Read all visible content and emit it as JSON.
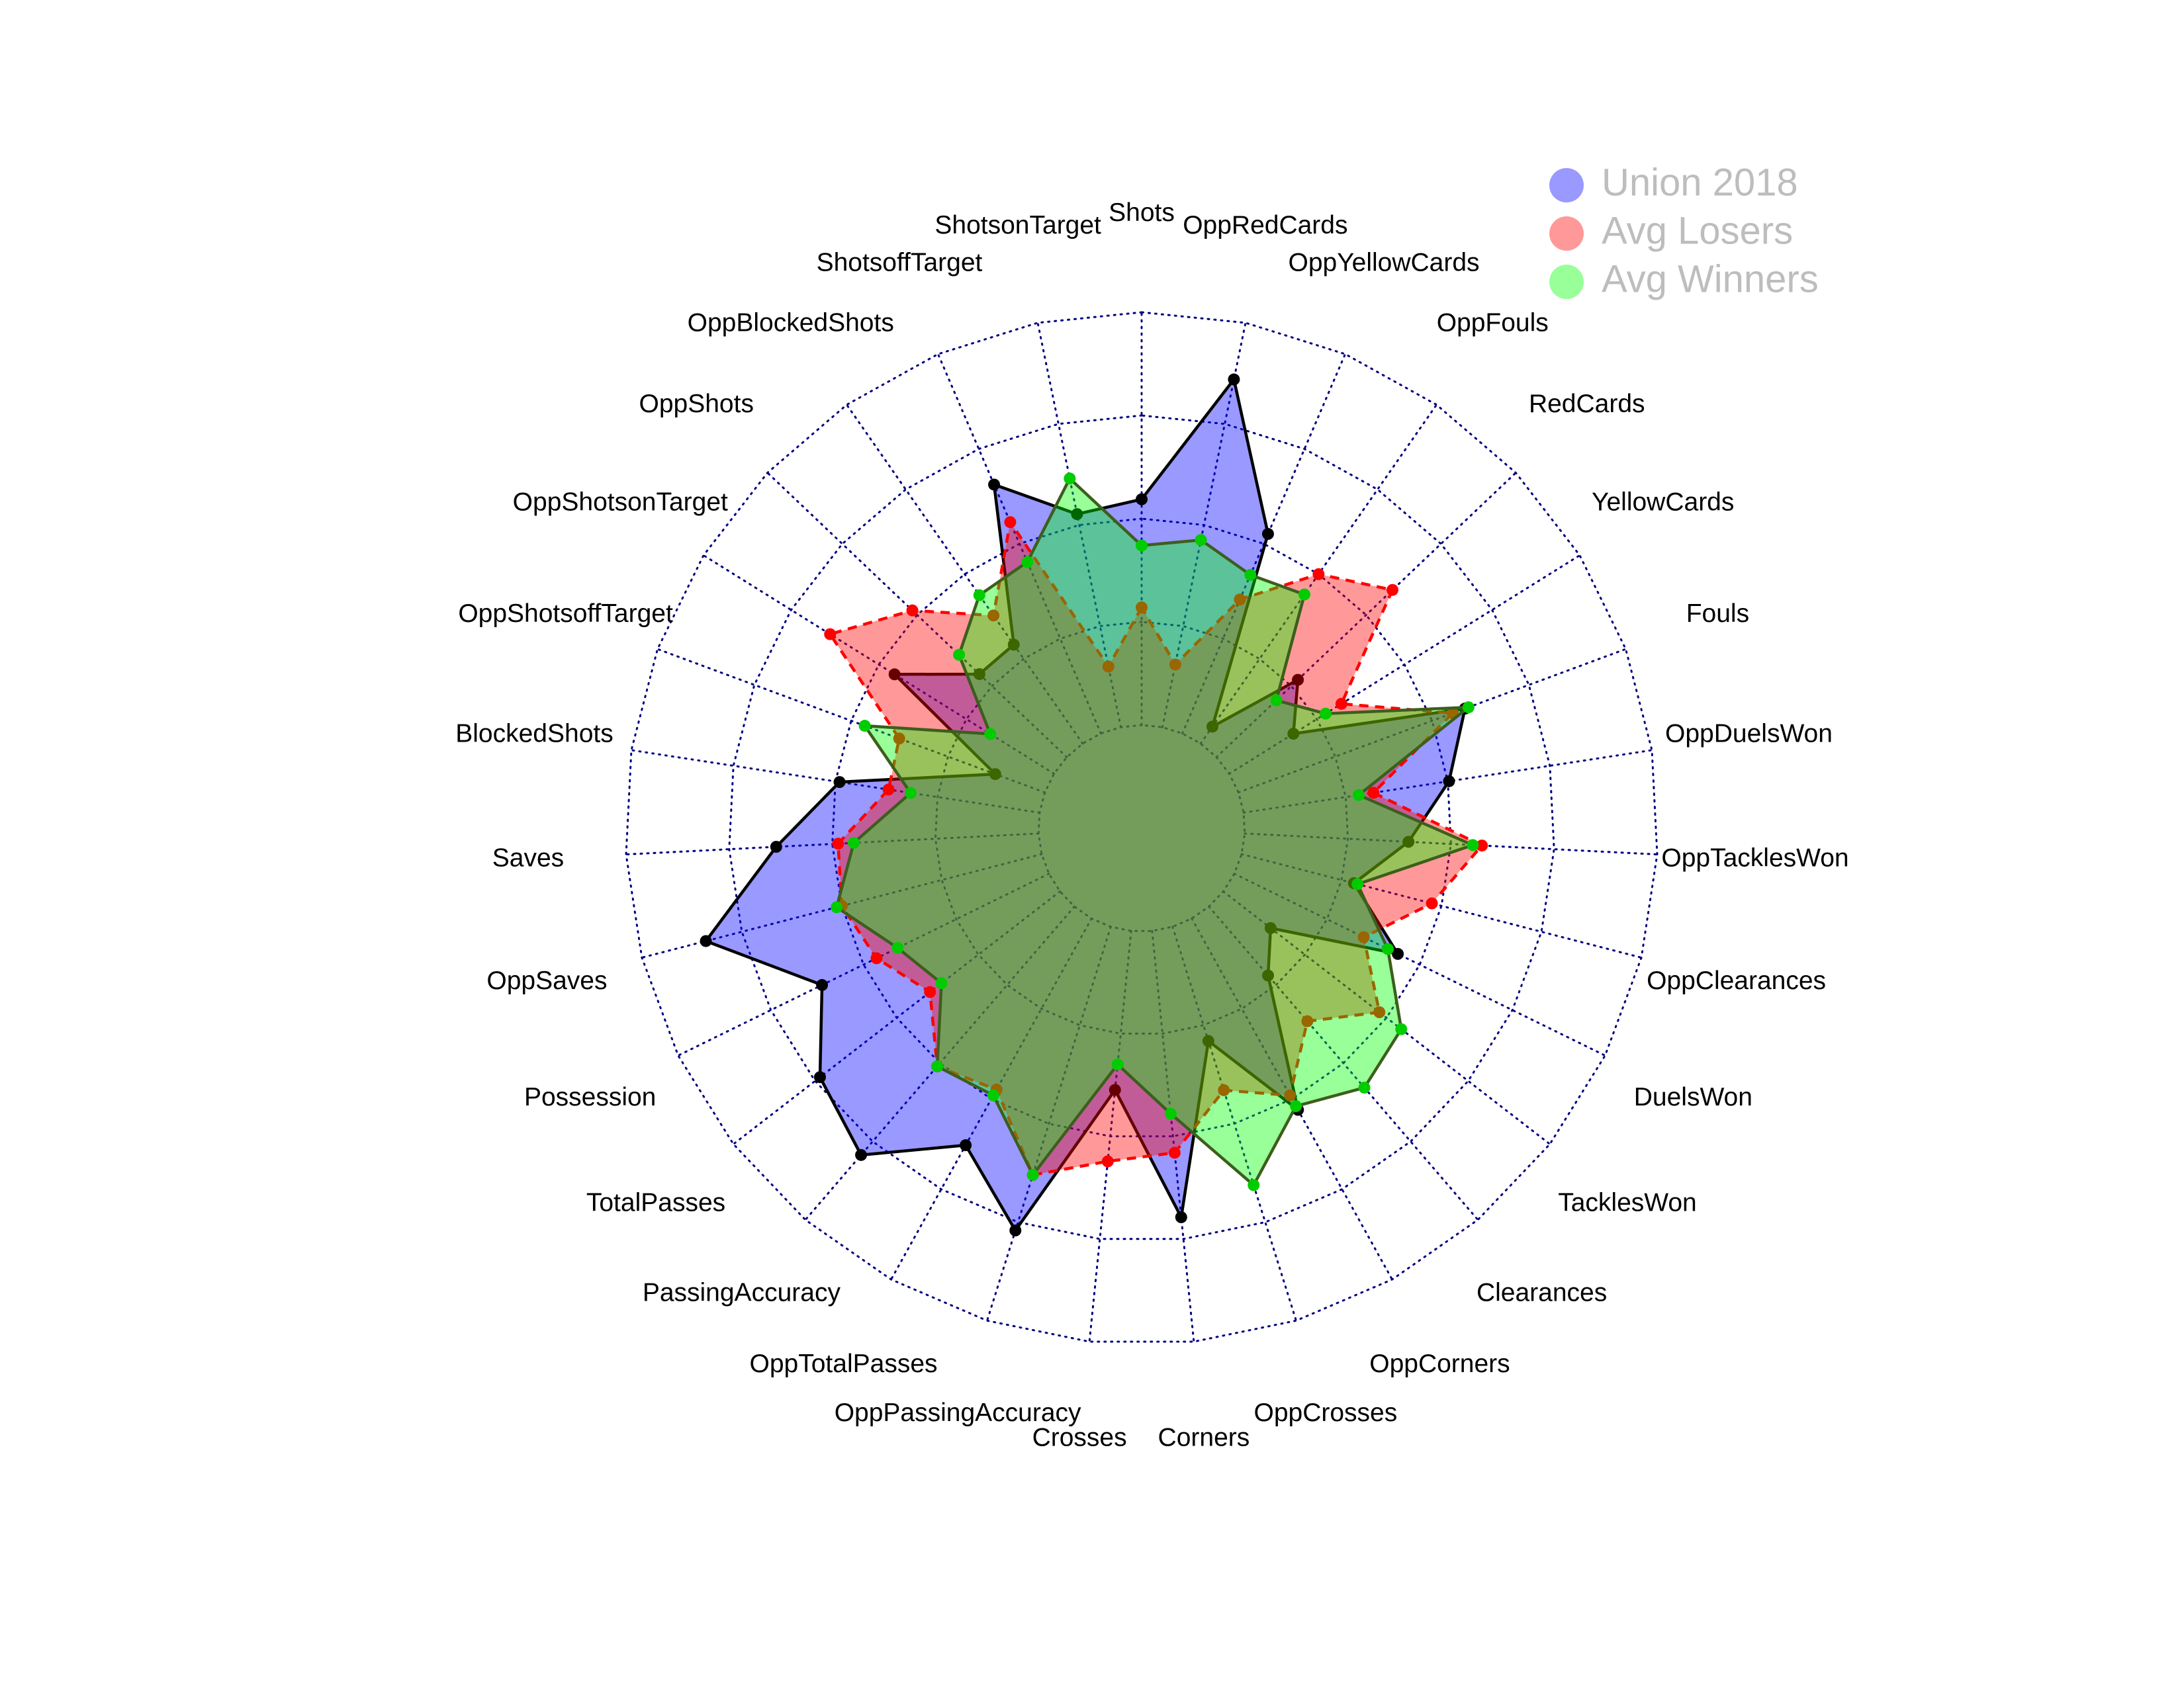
{
  "chart_data": {
    "type": "radar",
    "categories": [
      "Shots",
      "ShotsonTarget",
      "ShotsoffTarget",
      "OppBlockedShots",
      "OppShots",
      "OppShotsonTarget",
      "OppShotsoffTarget",
      "BlockedShots",
      "Saves",
      "OppSaves",
      "Possession",
      "TotalPasses",
      "PassingAccuracy",
      "OppTotalPasses",
      "OppPassingAccuracy",
      "Crosses",
      "Corners",
      "OppCrosses",
      "OppCorners",
      "Clearances",
      "TacklesWon",
      "DuelsWon",
      "OppClearances",
      "OppTacklesWon",
      "OppDuelsWon",
      "Fouls",
      "YellowCards",
      "RedCards",
      "OppFouls",
      "OppYellowCards",
      "OppRedCards"
    ],
    "series": [
      {
        "name": "Union 2018",
        "color": "#0000ff",
        "border_color": "#000000",
        "point_color": "#000000",
        "dashed": false,
        "values": [
          0.547,
          0.527,
          0.656,
          0.292,
          0.292,
          0.455,
          0.128,
          0.49,
          0.636,
          0.84,
          0.612,
          0.735,
          0.793,
          0.628,
          0.771,
          0.387,
          0.697,
          0.29,
          0.53,
          0.22,
          0.145,
          0.441,
          0.281,
          0.397,
          0.503,
          0.585,
          0.183,
          0.272,
          0.05,
          0.526,
          0.86
        ]
      },
      {
        "name": "Avg Losers",
        "color": "#ff0000",
        "border_color": "#ff0000",
        "point_color": "#ff0000",
        "dashed": true,
        "values": [
          0.285,
          0.15,
          0.557,
          0.378,
          0.516,
          0.639,
          0.376,
          0.37,
          0.486,
          0.5,
          0.465,
          0.398,
          0.51,
          0.474,
          0.63,
          0.561,
          0.54,
          0.415,
          0.49,
          0.366,
          0.478,
          0.349,
          0.476,
          0.575,
          0.318,
          0.553,
          0.32,
          0.588,
          0.5,
          0.353,
          0.155
        ]
      },
      {
        "name": "Avg Winners",
        "color": "#00ff00",
        "border_color": "#3d5e1c",
        "point_color": "#00cc00",
        "dashed": false,
        "values": [
          0.435,
          0.615,
          0.452,
          0.438,
          0.36,
          0.182,
          0.465,
          0.316,
          0.448,
          0.513,
          0.408,
          0.363,
          0.51,
          0.49,
          0.63,
          0.325,
          0.445,
          0.656,
          0.52,
          0.578,
          0.545,
          0.414,
          0.29,
          0.553,
          0.282,
          0.594,
          0.275,
          0.2,
          0.44,
          0.418,
          0.463
        ]
      }
    ],
    "ylim": [
      0,
      1
    ],
    "yticks": [
      0,
      0.25,
      0.5,
      0.75,
      1
    ],
    "grid": true,
    "fill_opacity": 0.4,
    "legend": "topright"
  }
}
